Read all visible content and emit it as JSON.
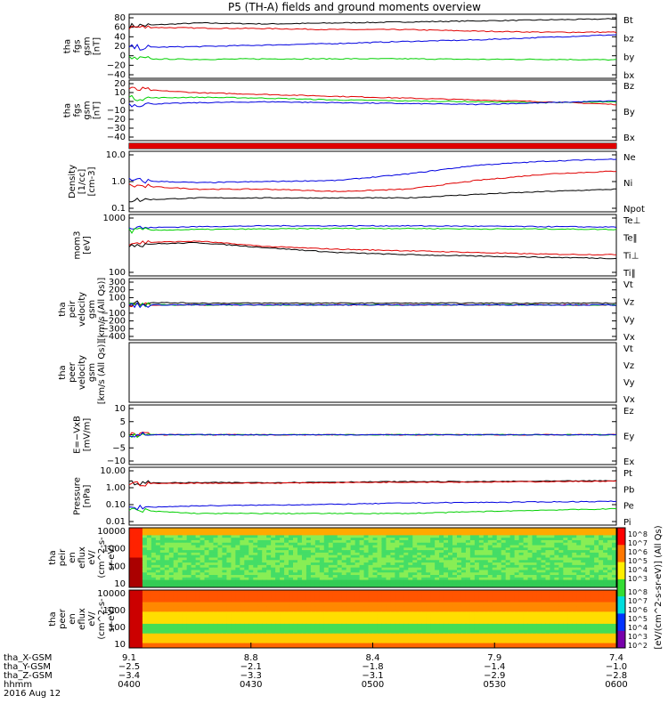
{
  "title": "P5 (TH-A) fields and ground moments overview",
  "colors": {
    "black": "#000000",
    "red": "#e00000",
    "green": "#00d000",
    "blue": "#0000e0"
  },
  "chart_data": [
    {
      "type": "line",
      "ylabel": [
        "tha",
        "fgs",
        "gsm",
        "[nT]"
      ],
      "yticks": [
        "80",
        "60",
        "40",
        "20",
        "0",
        "−20",
        "−40"
      ],
      "ylim": [
        -40,
        85
      ],
      "series": [
        {
          "name": "Bt",
          "color": "black",
          "values": [
            62,
            68,
            66,
            68,
            70,
            72,
            74,
            76
          ]
        },
        {
          "name": "bz",
          "color": "red",
          "values": [
            60,
            58,
            57,
            55,
            55,
            52,
            50,
            50
          ]
        },
        {
          "name": "by",
          "color": "green",
          "values": [
            -2,
            -3,
            -2,
            -2,
            -2,
            -3,
            -3,
            -4
          ]
        },
        {
          "name": "bx",
          "color": "blue",
          "values": [
            20,
            22,
            25,
            28,
            32,
            35,
            40,
            45
          ]
        }
      ]
    },
    {
      "type": "line",
      "ylabel": [
        "tha",
        "fgs",
        "gsm",
        "[nT]"
      ],
      "yticks": [
        "20",
        "10",
        "0",
        "−10",
        "−20",
        "−30",
        "−40"
      ],
      "ylim": [
        -45,
        22
      ],
      "series": [
        {
          "name": "Bz",
          "color": "red",
          "values": [
            12,
            8,
            6,
            4,
            2,
            0,
            -2,
            -5
          ]
        },
        {
          "name": "By",
          "color": "green",
          "values": [
            2,
            3,
            2,
            0,
            -1,
            -2,
            -3,
            -2
          ]
        },
        {
          "name": "Bx",
          "color": "blue",
          "values": [
            -5,
            -3,
            -2,
            -3,
            -4,
            -5,
            -3,
            -1
          ]
        }
      ]
    },
    {
      "type": "bar_strip",
      "color": "red"
    },
    {
      "type": "line",
      "log": true,
      "ylabel": [
        "Density",
        "[1/cc]",
        "[cm-3]"
      ],
      "yticks": [
        "10.0",
        "1.0",
        "0.1"
      ],
      "ylim": [
        0.1,
        12
      ],
      "series": [
        {
          "name": "Ne",
          "color": "red",
          "values": [
            0.8,
            0.6,
            0.6,
            0.5,
            0.6,
            1.2,
            2.0,
            2.5
          ]
        },
        {
          "name": "Ni",
          "color": "black",
          "values": [
            0.25,
            0.3,
            0.3,
            0.3,
            0.3,
            0.4,
            0.5,
            0.6
          ]
        },
        {
          "name": "Npot",
          "color": "blue",
          "values": [
            1.2,
            1.0,
            1.1,
            1.2,
            2.0,
            4.0,
            5.5,
            6.5
          ]
        }
      ]
    },
    {
      "type": "line",
      "log": true,
      "ylabel": [
        "mom3",
        "[eV]"
      ],
      "yticks": [
        "1000",
        "100"
      ],
      "ylim": [
        40,
        8000
      ],
      "series": [
        {
          "name": "Te⊥",
          "color": "red",
          "values": [
            700,
            800,
            500,
            400,
            350,
            300,
            260,
            250
          ]
        },
        {
          "name": "Te‖",
          "color": "black",
          "values": [
            600,
            700,
            450,
            300,
            250,
            220,
            200,
            180
          ]
        },
        {
          "name": "Ti⊥",
          "color": "blue",
          "values": [
            2500,
            2800,
            3000,
            3000,
            3000,
            2900,
            2800,
            2700
          ]
        },
        {
          "name": "Ti‖",
          "color": "green",
          "values": [
            2000,
            2200,
            2300,
            2400,
            2400,
            2300,
            2300,
            2200
          ]
        }
      ]
    },
    {
      "type": "line",
      "ylabel": [
        "tha",
        "peir",
        "velocity",
        "gsm",
        "[km/s (All Qs)]"
      ],
      "yticks": [
        "300",
        "200",
        "100",
        "0",
        "−100",
        "−200",
        "−300",
        "−400"
      ],
      "ylim": [
        -400,
        300
      ],
      "series": [
        {
          "name": "Vt",
          "color": "black",
          "values": [
            30,
            20,
            20,
            20,
            20,
            20,
            20,
            20
          ]
        },
        {
          "name": "Vz",
          "color": "red",
          "values": [
            0,
            0,
            0,
            0,
            0,
            0,
            0,
            0
          ]
        },
        {
          "name": "Vy",
          "color": "green",
          "values": [
            0,
            0,
            0,
            0,
            0,
            0,
            0,
            0
          ]
        },
        {
          "name": "Vx",
          "color": "blue",
          "values": [
            0,
            0,
            0,
            0,
            0,
            0,
            0,
            0
          ]
        }
      ]
    },
    {
      "type": "line",
      "ylabel": [
        "tha",
        "peer",
        "velocity",
        "gsm",
        "[km/s (All Qs)]"
      ],
      "yticks": [],
      "ylim": [
        0,
        1
      ],
      "series": [
        {
          "name": "Vt",
          "color": "black",
          "values": []
        },
        {
          "name": "Vz",
          "color": "red",
          "values": []
        },
        {
          "name": "Vy",
          "color": "green",
          "values": []
        },
        {
          "name": "Vx",
          "color": "blue",
          "values": []
        }
      ]
    },
    {
      "type": "line",
      "ylabel": [
        "E=−VxB",
        "[mV/m]"
      ],
      "yticks": [
        "10",
        "5",
        "0",
        "−5",
        "−10"
      ],
      "ylim": [
        -10,
        10
      ],
      "series": [
        {
          "name": "Ez",
          "color": "red",
          "values": [
            0,
            0,
            0,
            0,
            0,
            0,
            0,
            0
          ]
        },
        {
          "name": "Ey",
          "color": "green",
          "values": [
            0,
            0,
            0,
            0,
            0,
            0,
            0,
            0
          ]
        },
        {
          "name": "Ex",
          "color": "blue",
          "values": [
            0,
            0,
            0,
            0,
            0,
            0,
            0,
            0
          ]
        }
      ]
    },
    {
      "type": "line",
      "log": true,
      "ylabel": [
        "Pressure",
        "[nPa]"
      ],
      "yticks": [
        "10.00",
        "1.00",
        "0.10",
        "0.01"
      ],
      "ylim": [
        0.01,
        10
      ],
      "series": [
        {
          "name": "Pt",
          "color": "black",
          "values": [
            1.5,
            1.6,
            1.6,
            1.7,
            1.8,
            1.8,
            1.9,
            2.0
          ]
        },
        {
          "name": "Pb",
          "color": "red",
          "values": [
            1.4,
            1.5,
            1.5,
            1.6,
            1.7,
            1.7,
            1.8,
            1.9
          ]
        },
        {
          "name": "Pe",
          "color": "green",
          "values": [
            0.06,
            0.04,
            0.04,
            0.04,
            0.04,
            0.05,
            0.06,
            0.07
          ]
        },
        {
          "name": "Pi",
          "color": "blue",
          "values": [
            0.08,
            0.1,
            0.11,
            0.12,
            0.14,
            0.15,
            0.16,
            0.17
          ]
        }
      ]
    },
    {
      "type": "heatmap",
      "ylabel": [
        "tha",
        "peir",
        "en",
        "eflux",
        "eV/",
        "(cm^2-s-",
        "sr-eV)"
      ],
      "yticks": [
        "10000",
        "1000",
        "100",
        "10"
      ],
      "style": "ion"
    },
    {
      "type": "heatmap",
      "ylabel": [
        "tha",
        "peer",
        "en",
        "eflux",
        "eV/",
        "(cm^2-s-",
        "sr-eV)"
      ],
      "yticks": [
        "10000",
        "1000",
        "100",
        "10"
      ],
      "style": "electron"
    }
  ],
  "colorbar": {
    "label": "[eV/(cm^2-s-sr-eV)] (All Qs)",
    "ticks_top": [
      "10^8",
      "10^7",
      "10^6",
      "10^5",
      "10^4",
      "10^3"
    ],
    "ticks_bottom": [
      "10^8",
      "10^7",
      "10^6",
      "10^5",
      "10^4",
      "10^3",
      "10^2"
    ]
  },
  "xaxis": {
    "row_labels": [
      "tha_X-GSM",
      "tha_Y-GSM",
      "tha_Z-GSM",
      "hhmm",
      "2016 Aug 12"
    ],
    "columns": [
      [
        "9.1",
        "−2.5",
        "−3.4",
        "0400"
      ],
      [
        "8.8",
        "−2.1",
        "−3.3",
        "0430"
      ],
      [
        "8.4",
        "−1.8",
        "−3.1",
        "0500"
      ],
      [
        "7.9",
        "−1.4",
        "−2.9",
        "0530"
      ],
      [
        "7.4",
        "−1.0",
        "−2.8",
        "0600"
      ]
    ]
  }
}
